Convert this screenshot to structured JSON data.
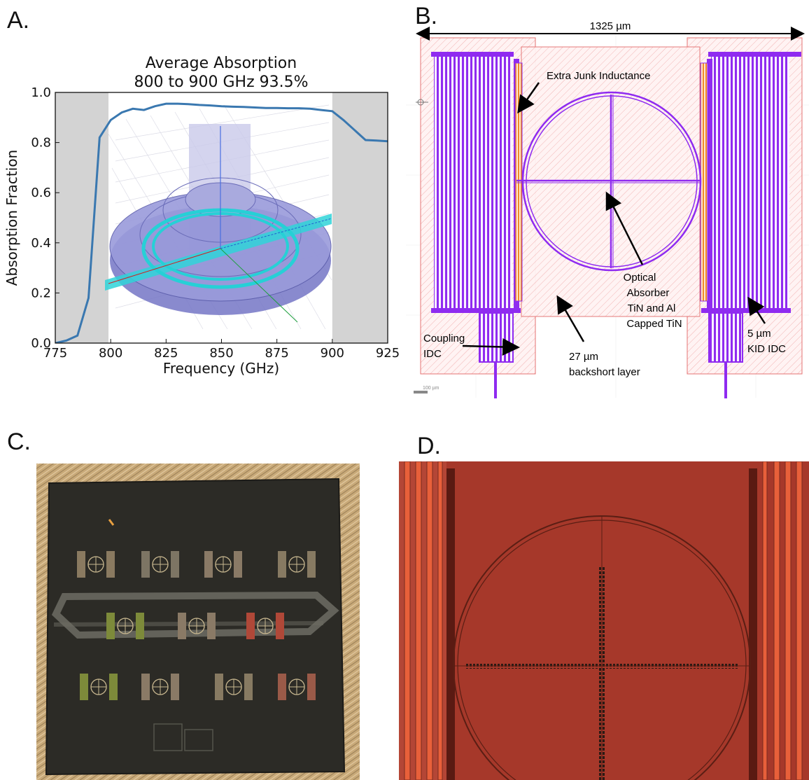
{
  "panels": {
    "a": "A.",
    "b": "B.",
    "c": "C.",
    "d": "D."
  },
  "chart_data": {
    "type": "line",
    "title": [
      "Average Absorption",
      "800 to 900 GHz 93.5%"
    ],
    "xlabel": "Frequency (GHz)",
    "ylabel": "Absorption Fraction",
    "xlim": [
      775,
      925
    ],
    "ylim": [
      0,
      1.0
    ],
    "x_ticks": [
      "775",
      "800",
      "825",
      "850",
      "875",
      "900",
      "925"
    ],
    "y_ticks": [
      "0.0",
      "0.2",
      "0.4",
      "0.6",
      "0.8",
      "1.0"
    ],
    "shaded_x_ranges": [
      [
        775,
        800
      ],
      [
        900,
        925
      ]
    ],
    "grid": false,
    "colors": {
      "line": "#3a78b0",
      "shade": "#d3d3d3"
    },
    "series": [
      {
        "x": [
          775,
          780,
          785,
          790,
          795,
          800,
          805,
          810,
          815,
          820,
          825,
          830,
          835,
          840,
          845,
          850,
          855,
          860,
          865,
          870,
          875,
          880,
          885,
          890,
          895,
          900,
          905,
          910,
          915,
          920,
          925
        ],
        "y": [
          0.0,
          0.01,
          0.03,
          0.18,
          0.82,
          0.89,
          0.92,
          0.935,
          0.93,
          0.945,
          0.955,
          0.955,
          0.953,
          0.95,
          0.948,
          0.945,
          0.943,
          0.942,
          0.94,
          0.938,
          0.938,
          0.937,
          0.937,
          0.935,
          0.93,
          0.925,
          0.89,
          0.85,
          0.81,
          0.808,
          0.805
        ]
      }
    ]
  },
  "layout_b": {
    "dimension": "1325 µm",
    "labels": {
      "junk": "Extra Junk Inductance",
      "optical": [
        "Optical",
        "Absorber",
        "TiN and Al",
        "Capped TiN"
      ],
      "coupling": [
        "Coupling",
        "IDC"
      ],
      "backshort": [
        "27 µm",
        "backshort layer"
      ],
      "kid": [
        "5 µm",
        "KID IDC"
      ],
      "scale": "100 µm"
    },
    "colors": {
      "metal": "#8f2bf0",
      "junk": "#f08a2a",
      "backshort": "#e57373"
    }
  }
}
